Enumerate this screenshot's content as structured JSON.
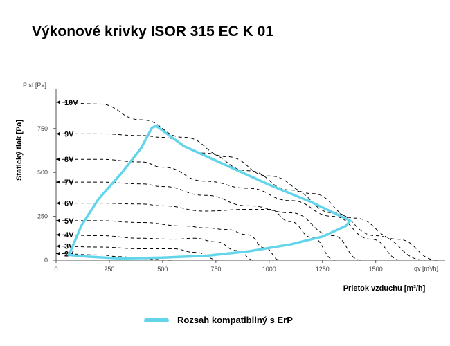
{
  "title": "Výkonové krivky ISOR 315 EC K 01",
  "chart_data": {
    "type": "line",
    "title": "Výkonové krivky ISOR 315 EC K 01",
    "xlabel": "Prietok vzduchu [m³/h]",
    "ylabel": "Statický tlak [Pa]",
    "x_unit_label": "qv [m³/h]",
    "y_unit_label": "P sf [Pa]",
    "xlim": [
      0,
      1800
    ],
    "ylim": [
      0,
      800
    ],
    "x_ticks": [
      0,
      250,
      500,
      750,
      1000,
      1250,
      1500
    ],
    "y_ticks": [
      0,
      250,
      500,
      750
    ],
    "grid": false,
    "legend_position": "bottom",
    "series": [
      {
        "name": "10V",
        "x": [
          0,
          200,
          400,
          600,
          800,
          1000,
          1200,
          1400,
          1600,
          1790
        ],
        "y": [
          900,
          890,
          800,
          700,
          590,
          480,
          380,
          240,
          120,
          0
        ]
      },
      {
        "name": "9V",
        "x": [
          0,
          200,
          400,
          500,
          700,
          900,
          1100,
          1300,
          1500,
          1730
        ],
        "y": [
          720,
          720,
          710,
          700,
          610,
          510,
          400,
          270,
          140,
          0
        ]
      },
      {
        "name": "8V",
        "x": [
          0,
          200,
          400,
          500,
          700,
          900,
          1100,
          1300,
          1480,
          1620
        ],
        "y": [
          575,
          575,
          560,
          530,
          450,
          410,
          340,
          250,
          120,
          0
        ]
      },
      {
        "name": "7V",
        "x": [
          0,
          200,
          400,
          500,
          700,
          900,
          1100,
          1300,
          1430
        ],
        "y": [
          445,
          445,
          435,
          420,
          370,
          310,
          270,
          140,
          0
        ]
      },
      {
        "name": "6V",
        "x": [
          0,
          200,
          400,
          500,
          700,
          900,
          1000,
          1100,
          1200,
          1310
        ],
        "y": [
          325,
          325,
          320,
          310,
          280,
          290,
          290,
          220,
          130,
          0
        ]
      },
      {
        "name": "5V",
        "x": [
          0,
          200,
          400,
          600,
          700,
          800,
          900,
          980,
          1050
        ],
        "y": [
          225,
          225,
          215,
          195,
          185,
          175,
          145,
          70,
          0
        ]
      },
      {
        "name": "4V",
        "x": [
          0,
          200,
          400,
          550,
          650,
          750,
          850,
          930
        ],
        "y": [
          145,
          140,
          125,
          120,
          125,
          105,
          55,
          0
        ]
      },
      {
        "name": "3V",
        "x": [
          0,
          200,
          400,
          550,
          650,
          770
        ],
        "y": [
          80,
          75,
          65,
          65,
          45,
          0
        ]
      },
      {
        "name": "2V",
        "x": [
          0,
          200,
          300,
          400,
          550
        ],
        "y": [
          38,
          30,
          20,
          8,
          0
        ]
      }
    ],
    "voltage_labels": [
      "10V",
      "9V",
      "8V",
      "7V",
      "6V",
      "5V",
      "4V",
      "3V",
      "2V"
    ],
    "erp_range": {
      "name": "Rozsah kompatibilný s ErP",
      "color": "#63d5ea",
      "x": [
        60,
        120,
        200,
        310,
        400,
        450,
        470,
        600,
        800,
        1000,
        1200,
        1380,
        1360,
        1250,
        1100,
        900,
        700,
        500,
        300,
        150,
        60,
        60
      ],
      "y": [
        30,
        200,
        350,
        500,
        640,
        755,
        765,
        650,
        540,
        430,
        330,
        225,
        195,
        135,
        90,
        50,
        25,
        15,
        10,
        20,
        30,
        30
      ]
    },
    "colors": {
      "curves": "#000000",
      "erp": "#63d5ea",
      "axis": "#555555"
    }
  },
  "legend": {
    "label": "Rozsah kompatibilný s ErP",
    "color": "#63d5ea"
  }
}
